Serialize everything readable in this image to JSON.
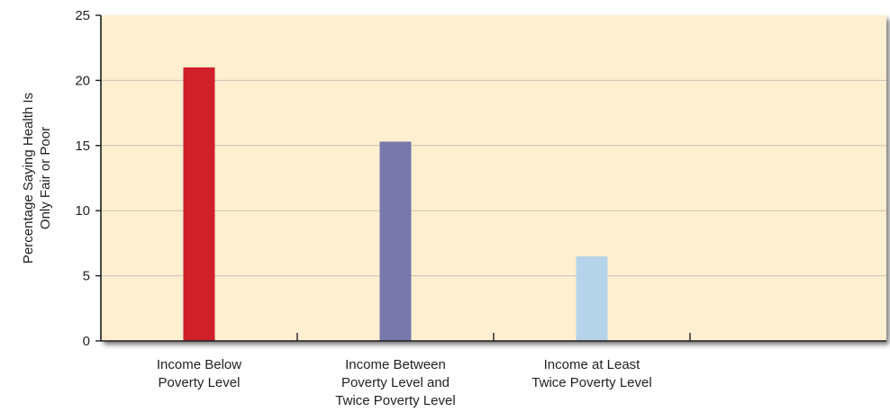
{
  "chart_data": {
    "type": "bar",
    "title": "",
    "xlabel": "",
    "ylabel_lines": [
      "Percentage Saying Health Is",
      "Only Fair or Poor"
    ],
    "ylim": [
      0,
      25
    ],
    "yticks": [
      0,
      5,
      10,
      15,
      20,
      25
    ],
    "grid": true,
    "categories": [
      [
        "Income Below",
        "Poverty Level"
      ],
      [
        "Income Between",
        "Poverty Level and",
        "Twice Poverty Level"
      ],
      [
        "Income at Least",
        "Twice Poverty Level"
      ],
      []
    ],
    "values": [
      21,
      15.3,
      6.5,
      null
    ],
    "colors": [
      "#d0202a",
      "#7878ac",
      "#b5d4e9",
      null
    ]
  },
  "colors": {
    "plot_background": "#fdefcf",
    "gridline": "#c8c2b4",
    "axis": "#231f20",
    "text": "#231f20"
  }
}
